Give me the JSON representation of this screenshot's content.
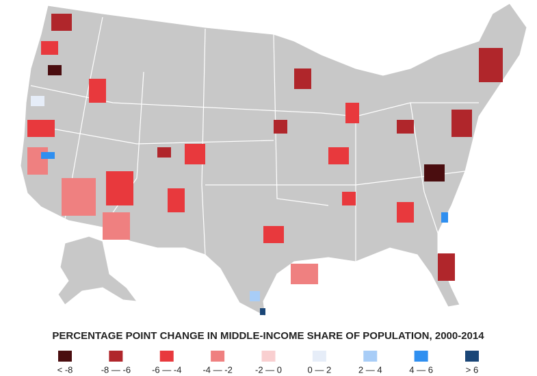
{
  "legend": {
    "title": "PERCENTAGE POINT CHANGE IN MIDDLE-INCOME SHARE OF POPULATION, 2000-2014",
    "bins": [
      {
        "label": "< -8",
        "color": "#4a0d0f"
      },
      {
        "label": "-8 — -6",
        "color": "#b0262b"
      },
      {
        "label": "-6 — -4",
        "color": "#e8393d"
      },
      {
        "label": "-4 — -2",
        "color": "#ef8080"
      },
      {
        "label": "-2 — 0",
        "color": "#f9cfd0"
      },
      {
        "label": "0 — 2",
        "color": "#e6edf8"
      },
      {
        "label": "2 — 4",
        "color": "#a8cdf7"
      },
      {
        "label": "4 — 6",
        "color": "#2f8ff0"
      },
      {
        "label": "> 6",
        "color": "#1a4677"
      }
    ]
  }
}
